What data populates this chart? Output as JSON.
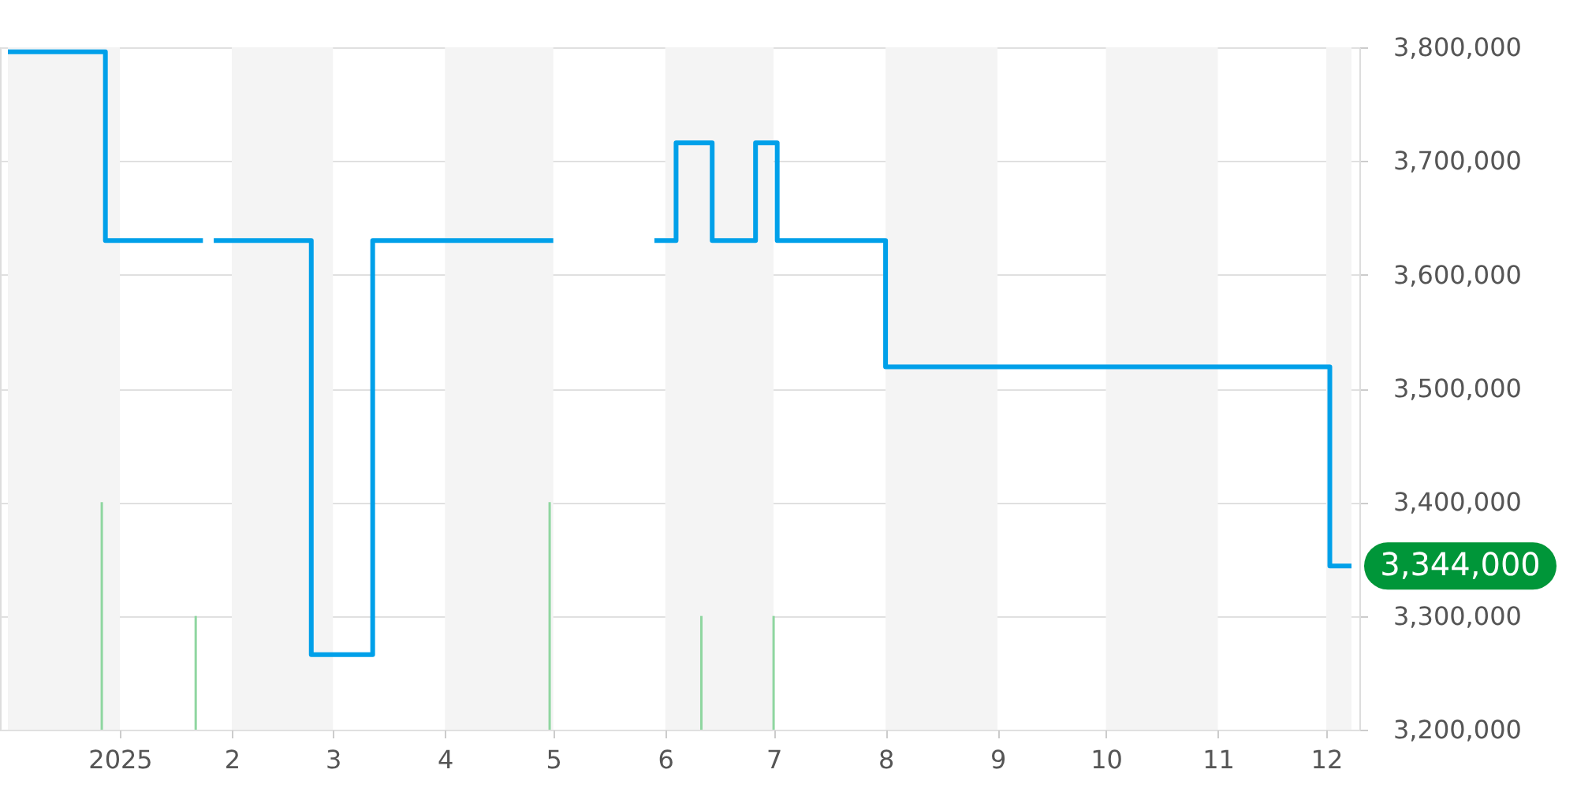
{
  "chart_data": {
    "type": "step",
    "xlim": [
      "2024-12-01",
      "2025-12-08"
    ],
    "xticks": [
      {
        "value": "2025-01-01",
        "label": "2025"
      },
      {
        "value": "2025-02-01",
        "label": "2"
      },
      {
        "value": "2025-03-01",
        "label": "3"
      },
      {
        "value": "2025-04-01",
        "label": "4"
      },
      {
        "value": "2025-05-01",
        "label": "5"
      },
      {
        "value": "2025-06-01",
        "label": "6"
      },
      {
        "value": "2025-07-01",
        "label": "7"
      },
      {
        "value": "2025-08-01",
        "label": "8"
      },
      {
        "value": "2025-09-01",
        "label": "9"
      },
      {
        "value": "2025-10-01",
        "label": "10"
      },
      {
        "value": "2025-11-01",
        "label": "11"
      },
      {
        "value": "2025-12-01",
        "label": "12"
      }
    ],
    "ylim": [
      3200000,
      3800000
    ],
    "yticks": [
      {
        "value": 3200000,
        "label": "3,200,000"
      },
      {
        "value": 3300000,
        "label": "3,300,000"
      },
      {
        "value": 3400000,
        "label": "3,400,000"
      },
      {
        "value": 3500000,
        "label": "3,500,000"
      },
      {
        "value": 3600000,
        "label": "3,600,000"
      },
      {
        "value": 3700000,
        "label": "3,700,000"
      },
      {
        "value": 3800000,
        "label": "3,800,000"
      }
    ],
    "grid": "y",
    "series": [
      {
        "type": "bar",
        "color": "#8fd6a0",
        "x": [
          "2024-12-27",
          "2025-01-22",
          "2025-04-30",
          "2025-06-11",
          "2025-07-01"
        ],
        "values": [
          3400000,
          3300000,
          3400000,
          3300000,
          3300000
        ]
      },
      {
        "color": "#00a0e9",
        "x": [
          "2024-12-01",
          "2024-12-28",
          "2025-01-24",
          "2025-01-25",
          "2025-01-27",
          "2025-02-23",
          "2025-03-12",
          "2025-05-01",
          "2025-05-02",
          "2025-05-29",
          "2025-06-04",
          "2025-06-14",
          "2025-06-26",
          "2025-07-02",
          "2025-08-01",
          "2025-12-02",
          "2025-12-08"
        ],
        "values": [
          3796000,
          3630000,
          3630000,
          null,
          3630000,
          3266000,
          3630000,
          3630000,
          null,
          3630000,
          3716000,
          3630000,
          3716000,
          3630000,
          3519000,
          3344000,
          3344000
        ]
      }
    ],
    "bands": [
      {
        "axis": "x",
        "from": "2024-12-01",
        "to": "2025-01-01",
        "color": "#f4f4f4"
      },
      {
        "axis": "x",
        "from": "2025-02-01",
        "to": "2025-03-01",
        "color": "#f4f4f4"
      },
      {
        "axis": "x",
        "from": "2025-04-01",
        "to": "2025-05-01",
        "color": "#f4f4f4"
      },
      {
        "axis": "x",
        "from": "2025-06-01",
        "to": "2025-07-01",
        "color": "#f4f4f4"
      },
      {
        "axis": "x",
        "from": "2025-08-01",
        "to": "2025-09-01",
        "color": "#f4f4f4"
      },
      {
        "axis": "x",
        "from": "2025-10-01",
        "to": "2025-11-01",
        "color": "#f4f4f4"
      },
      {
        "axis": "x",
        "from": "2025-12-01",
        "to": "2025-12-08",
        "color": "#f4f4f4"
      }
    ],
    "annotations": [
      {
        "text": "3,344,000",
        "x": "2025-12-08",
        "y": 3344000
      }
    ]
  }
}
